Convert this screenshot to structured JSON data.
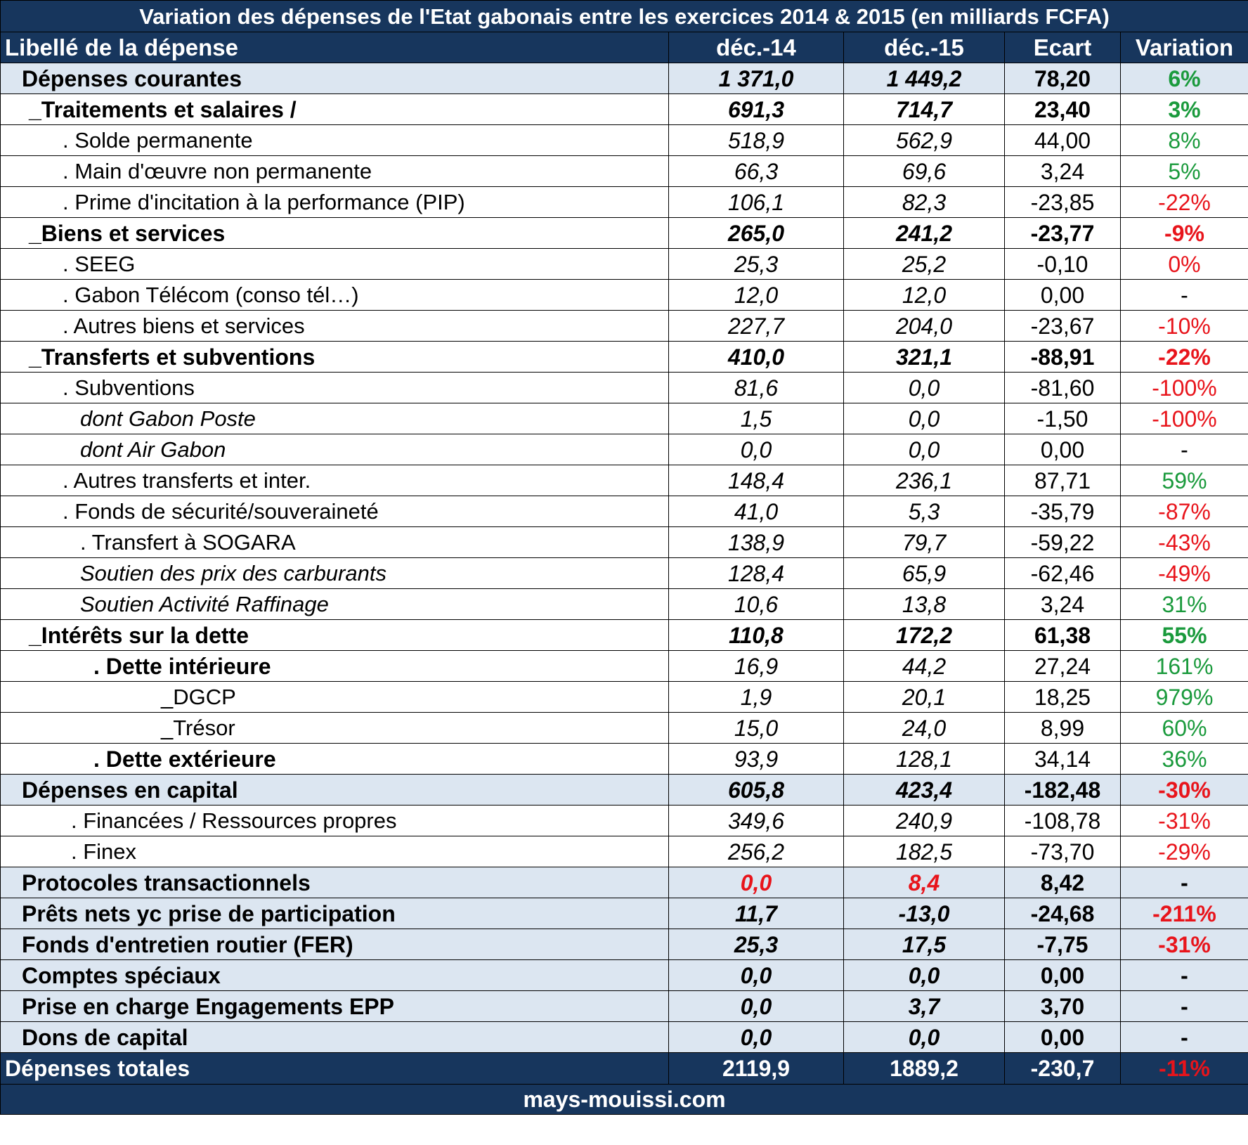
{
  "title": "Variation des dépenses de l'Etat gabonais entre les exercices 2014 & 2015 (en milliards FCFA)",
  "header": {
    "label": "Libellé de la dépense",
    "col1": "déc.-14",
    "col2": "déc.-15",
    "col3": "Ecart",
    "col4": "Variation"
  },
  "rows": [
    {
      "label": "Dépenses courantes",
      "v14": "1 371,0",
      "v15": "1 449,2",
      "ecart": "78,20",
      "variation": "6%",
      "style": "category",
      "indent": 30,
      "var_color": "pos"
    },
    {
      "label": "_Traitements et salaires  /",
      "v14": "691,3",
      "v15": "714,7",
      "ecart": "23,40",
      "variation": "3%",
      "style": "bold",
      "indent": 40,
      "var_color": "pos"
    },
    {
      "label": ". Solde permanente",
      "v14": "518,9",
      "v15": "562,9",
      "ecart": "44,00",
      "variation": "8%",
      "style": "normal",
      "indent": 88,
      "var_color": "pos"
    },
    {
      "label": ". Main d'œuvre non permanente",
      "v14": "66,3",
      "v15": "69,6",
      "ecart": "3,24",
      "variation": "5%",
      "style": "normal",
      "indent": 88,
      "var_color": "pos"
    },
    {
      "label": ". Prime d'incitation à la performance (PIP)",
      "v14": "106,1",
      "v15": "82,3",
      "ecart": "-23,85",
      "variation": "-22%",
      "style": "normal",
      "indent": 88,
      "var_color": "neg"
    },
    {
      "label": "_Biens et services",
      "v14": "265,0",
      "v15": "241,2",
      "ecart": "-23,77",
      "variation": "-9%",
      "style": "bold",
      "indent": 40,
      "var_color": "neg"
    },
    {
      "label": ". SEEG",
      "v14": "25,3",
      "v15": "25,2",
      "ecart": "-0,10",
      "variation": "0%",
      "style": "normal",
      "indent": 88,
      "var_color": "neg"
    },
    {
      "label": ". Gabon Télécom (conso tél…)",
      "v14": "12,0",
      "v15": "12,0",
      "ecart": "0,00",
      "variation": "-",
      "style": "normal",
      "indent": 88,
      "var_color": "neutral"
    },
    {
      "label": ". Autres biens et services",
      "v14": "227,7",
      "v15": "204,0",
      "ecart": "-23,67",
      "variation": "-10%",
      "style": "normal",
      "indent": 88,
      "var_color": "neg"
    },
    {
      "label": "_Transferts et subventions",
      "v14": "410,0",
      "v15": "321,1",
      "ecart": "-88,91",
      "variation": "-22%",
      "style": "bold",
      "indent": 40,
      "var_color": "neg"
    },
    {
      "label": ". Subventions",
      "v14": "81,6",
      "v15": "0,0",
      "ecart": "-81,60",
      "variation": "-100%",
      "style": "normal",
      "indent": 88,
      "var_color": "neg"
    },
    {
      "label": "dont Gabon Poste",
      "v14": "1,5",
      "v15": "0,0",
      "ecart": "-1,50",
      "variation": "-100%",
      "style": "italic",
      "indent": 113,
      "var_color": "neg"
    },
    {
      "label": "dont Air Gabon",
      "v14": "0,0",
      "v15": "0,0",
      "ecart": "0,00",
      "variation": "-",
      "style": "italic",
      "indent": 113,
      "var_color": "neutral"
    },
    {
      "label": ". Autres transferts et inter.",
      "v14": "148,4",
      "v15": "236,1",
      "ecart": "87,71",
      "variation": "59%",
      "style": "normal",
      "indent": 88,
      "var_color": "pos"
    },
    {
      "label": ". Fonds de sécurité/souveraineté",
      "v14": "41,0",
      "v15": "5,3",
      "ecart": "-35,79",
      "variation": "-87%",
      "style": "normal",
      "indent": 88,
      "var_color": "neg"
    },
    {
      "label": ". Transfert à SOGARA",
      "v14": "138,9",
      "v15": "79,7",
      "ecart": "-59,22",
      "variation": "-43%",
      "style": "normal",
      "indent": 113,
      "var_color": "neg"
    },
    {
      "label": "Soutien des prix des carburants",
      "v14": "128,4",
      "v15": "65,9",
      "ecart": "-62,46",
      "variation": "-49%",
      "style": "italic",
      "indent": 113,
      "var_color": "neg"
    },
    {
      "label": "Soutien Activité Raffinage",
      "v14": "10,6",
      "v15": "13,8",
      "ecart": "3,24",
      "variation": "31%",
      "style": "italic",
      "indent": 113,
      "var_color": "pos"
    },
    {
      "label": "_Intérêts sur la dette",
      "v14": "110,8",
      "v15": "172,2",
      "ecart": "61,38",
      "variation": "55%",
      "style": "bold",
      "indent": 40,
      "var_color": "pos"
    },
    {
      "label": ". Dette intérieure",
      "v14": "16,9",
      "v15": "44,2",
      "ecart": "27,24",
      "variation": "161%",
      "style": "boldlabel",
      "indent": 132,
      "var_color": "pos"
    },
    {
      "label": "_DGCP",
      "v14": "1,9",
      "v15": "20,1",
      "ecart": "18,25",
      "variation": "979%",
      "style": "normal",
      "indent": 228,
      "var_color": "pos"
    },
    {
      "label": "_Trésor",
      "v14": "15,0",
      "v15": "24,0",
      "ecart": "8,99",
      "variation": "60%",
      "style": "normal",
      "indent": 228,
      "var_color": "pos"
    },
    {
      "label": ". Dette extérieure",
      "v14": "93,9",
      "v15": "128,1",
      "ecart": "34,14",
      "variation": "36%",
      "style": "boldlabel",
      "indent": 132,
      "var_color": "pos"
    },
    {
      "label": "Dépenses en capital",
      "v14": "605,8",
      "v15": "423,4",
      "ecart": "-182,48",
      "variation": "-30%",
      "style": "category",
      "indent": 30,
      "var_color": "neg"
    },
    {
      "label": ". Financées / Ressources propres",
      "v14": "349,6",
      "v15": "240,9",
      "ecart": "-108,78",
      "variation": "-31%",
      "style": "normal",
      "indent": 100,
      "var_color": "neg"
    },
    {
      "label": ". Finex",
      "v14": "256,2",
      "v15": "182,5",
      "ecart": "-73,70",
      "variation": "-29%",
      "style": "normal",
      "indent": 100,
      "var_color": "neg"
    },
    {
      "label": "Protocoles transactionnels",
      "v14": "0,0",
      "v15": "8,4",
      "ecart": "8,42",
      "variation": "-",
      "style": "category",
      "indent": 30,
      "var_color": "neutral",
      "values_red": true
    },
    {
      "label": "Prêts nets yc prise de participation",
      "v14": "11,7",
      "v15": "-13,0",
      "ecart": "-24,68",
      "variation": "-211%",
      "style": "category",
      "indent": 30,
      "var_color": "neg"
    },
    {
      "label": "Fonds d'entretien routier (FER)",
      "v14": "25,3",
      "v15": "17,5",
      "ecart": "-7,75",
      "variation": "-31%",
      "style": "category",
      "indent": 30,
      "var_color": "neg"
    },
    {
      "label": "Comptes spéciaux",
      "v14": "0,0",
      "v15": "0,0",
      "ecart": "0,00",
      "variation": "-",
      "style": "category",
      "indent": 30,
      "var_color": "neutral"
    },
    {
      "label": "Prise en charge Engagements EPP",
      "v14": "0,0",
      "v15": "3,7",
      "ecart": "3,70",
      "variation": "-",
      "style": "category",
      "indent": 30,
      "var_color": "neutral"
    },
    {
      "label": "Dons de capital",
      "v14": "0,0",
      "v15": "0,0",
      "ecart": "0,00",
      "variation": "-",
      "style": "category",
      "indent": 30,
      "var_color": "neutral"
    }
  ],
  "total": {
    "label": "Dépenses totales",
    "v14": "2119,9",
    "v15": "1889,2",
    "ecart": "-230,7",
    "variation": "-11%"
  },
  "footer": "mays-mouissi.com",
  "colors": {
    "header_bg": "#17365D",
    "category_bg": "#DCE6F1",
    "positive": "#1a9a3c",
    "negative": "#e8141b"
  },
  "chart_data": {
    "type": "table",
    "title": "Variation des dépenses de l'Etat gabonais entre les exercices 2014 & 2015 (en milliards FCFA)",
    "columns": [
      "Libellé de la dépense",
      "déc.-14",
      "déc.-15",
      "Ecart",
      "Variation"
    ],
    "rows": [
      [
        "Dépenses courantes",
        1371.0,
        1449.2,
        78.2,
        "6%"
      ],
      [
        "_Traitements et salaires  /",
        691.3,
        714.7,
        23.4,
        "3%"
      ],
      [
        ". Solde permanente",
        518.9,
        562.9,
        44.0,
        "8%"
      ],
      [
        ". Main d'œuvre non permanente",
        66.3,
        69.6,
        3.24,
        "5%"
      ],
      [
        ". Prime d'incitation à la performance (PIP)",
        106.1,
        82.3,
        -23.85,
        "-22%"
      ],
      [
        "_Biens et services",
        265.0,
        241.2,
        -23.77,
        "-9%"
      ],
      [
        ". SEEG",
        25.3,
        25.2,
        -0.1,
        "0%"
      ],
      [
        ". Gabon Télécom (conso tél…)",
        12.0,
        12.0,
        0.0,
        "-"
      ],
      [
        ". Autres biens et services",
        227.7,
        204.0,
        -23.67,
        "-10%"
      ],
      [
        "_Transferts et subventions",
        410.0,
        321.1,
        -88.91,
        "-22%"
      ],
      [
        ". Subventions",
        81.6,
        0.0,
        -81.6,
        "-100%"
      ],
      [
        "dont Gabon Poste",
        1.5,
        0.0,
        -1.5,
        "-100%"
      ],
      [
        "dont Air Gabon",
        0.0,
        0.0,
        0.0,
        "-"
      ],
      [
        ". Autres transferts et inter.",
        148.4,
        236.1,
        87.71,
        "59%"
      ],
      [
        ". Fonds de sécurité/souveraineté",
        41.0,
        5.3,
        -35.79,
        "-87%"
      ],
      [
        ". Transfert à SOGARA",
        138.9,
        79.7,
        -59.22,
        "-43%"
      ],
      [
        "Soutien des prix des carburants",
        128.4,
        65.9,
        -62.46,
        "-49%"
      ],
      [
        "Soutien Activité Raffinage",
        10.6,
        13.8,
        3.24,
        "31%"
      ],
      [
        "_Intérêts sur la dette",
        110.8,
        172.2,
        61.38,
        "55%"
      ],
      [
        ". Dette intérieure",
        16.9,
        44.2,
        27.24,
        "161%"
      ],
      [
        "_DGCP",
        1.9,
        20.1,
        18.25,
        "979%"
      ],
      [
        "_Trésor",
        15.0,
        24.0,
        8.99,
        "60%"
      ],
      [
        ". Dette extérieure",
        93.9,
        128.1,
        34.14,
        "36%"
      ],
      [
        "Dépenses en capital",
        605.8,
        423.4,
        -182.48,
        "-30%"
      ],
      [
        ". Financées / Ressources propres",
        349.6,
        240.9,
        -108.78,
        "-31%"
      ],
      [
        ". Finex",
        256.2,
        182.5,
        -73.7,
        "-29%"
      ],
      [
        "Protocoles transactionnels",
        0.0,
        8.4,
        8.42,
        "-"
      ],
      [
        "Prêts nets yc prise de participation",
        11.7,
        -13.0,
        -24.68,
        "-211%"
      ],
      [
        "Fonds d'entretien routier (FER)",
        25.3,
        17.5,
        -7.75,
        "-31%"
      ],
      [
        "Comptes spéciaux",
        0.0,
        0.0,
        0.0,
        "-"
      ],
      [
        "Prise en charge Engagements EPP",
        0.0,
        3.7,
        3.7,
        "-"
      ],
      [
        "Dons de capital",
        0.0,
        0.0,
        0.0,
        "-"
      ],
      [
        "Dépenses totales",
        2119.9,
        1889.2,
        -230.7,
        "-11%"
      ]
    ]
  }
}
